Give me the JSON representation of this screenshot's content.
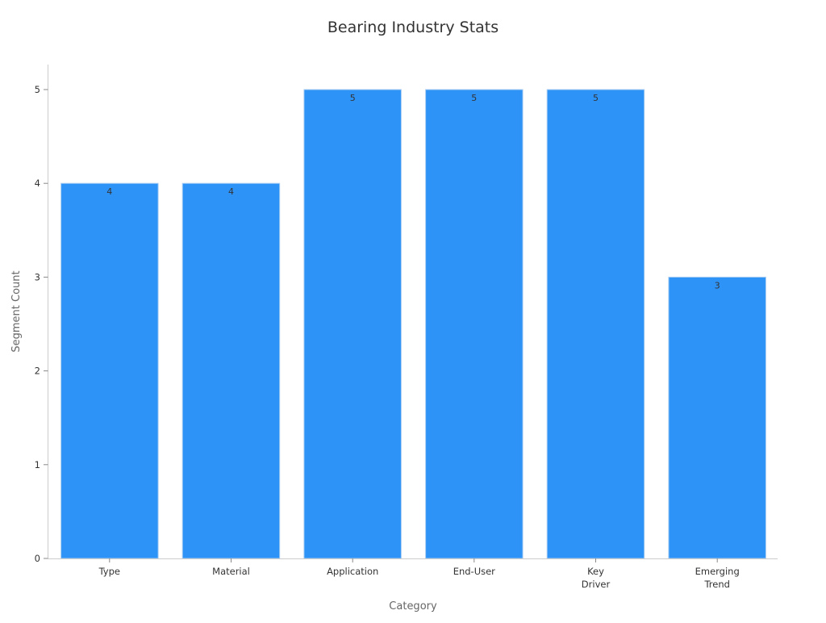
{
  "chart_data": {
    "type": "bar",
    "title": "Bearing Industry Stats",
    "xlabel": "Category",
    "ylabel": "Segment Count",
    "categories": [
      [
        "Type"
      ],
      [
        "Material"
      ],
      [
        "Application"
      ],
      [
        "End-User"
      ],
      [
        "Key",
        "Driver"
      ],
      [
        "Emerging",
        "Trend"
      ]
    ],
    "values": [
      4,
      4,
      5,
      5,
      5,
      3
    ],
    "ylim": [
      0,
      5.25
    ],
    "yticks": [
      0,
      1,
      2,
      3,
      4,
      5
    ],
    "grid": false,
    "legend": "none",
    "colors": {
      "bar_fill": "#2e93f6",
      "bar_stroke": "#a9cdf2"
    }
  }
}
